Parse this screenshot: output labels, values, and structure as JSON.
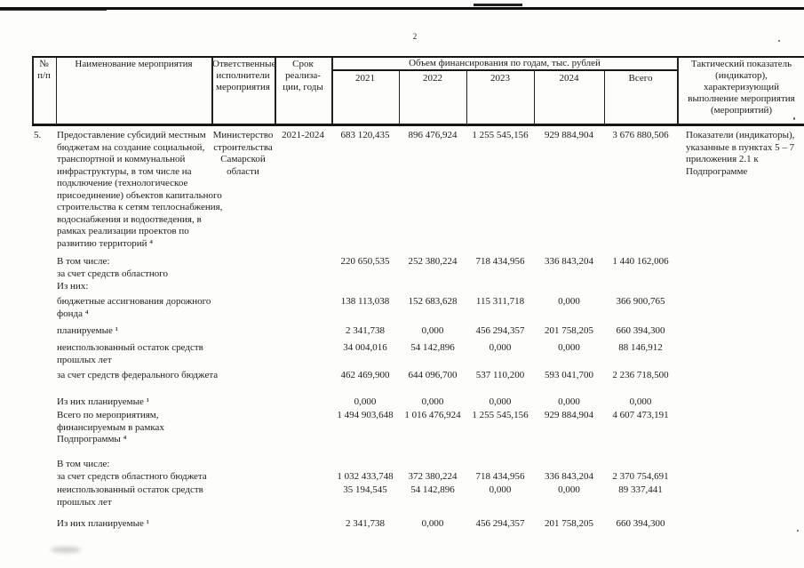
{
  "page": {
    "number": "2"
  },
  "table": {
    "header": {
      "num": "№\nп/п",
      "name": "Наименование мероприятия",
      "resp": "Ответственные\nисполнители\nмероприятия",
      "term": "Срок\nреализа-\nции, годы",
      "finance_span": "Объем финансирования по годам, тыс. рублей",
      "years": [
        "2021",
        "2022",
        "2023",
        "2024",
        "Всего"
      ],
      "indicator": "Тактический показатель\n(индикатор),\nхарактеризующий\nвыполнение мероприятия\n(мероприятий)"
    },
    "rows": [
      {
        "num": "5.",
        "label": "Предоставление субсидий местным\nбюджетам на создание социальной,\nтранспортной и коммунальной\nинфраструктуры, в том числе на\nподключение (технологическое\nприсоединение) объектов капитального\nстроительства к сетям теплоснабжения,\nводоснабжения и водоотведения, в\nрамках реализации проектов по\nразвитию территорий ⁴",
        "resp": "Министерство\nстроительства\nСамарской\nобласти",
        "term": "2021-2024",
        "values": [
          "683 120,435",
          "896 476,924",
          "1 255 545,156",
          "929 884,904",
          "3 676 880,506"
        ],
        "indicator": "Показатели (индикаторы),\nуказанные в пунктах 5 – 7\nприложения 2.1 к\nПодпрограмме"
      },
      {
        "label": "В том числе:\nза счет средств областного",
        "values": [
          "220 650,535",
          "252 380,224",
          "718 434,956",
          "336 843,204",
          "1 440 162,006"
        ]
      },
      {
        "label": "Из них:",
        "values": []
      },
      {
        "label": "бюджетные ассигнования дорожного\nфонда ⁴",
        "values": [
          "138 113,038",
          "152 683,628",
          "115 311,718",
          "0,000",
          "366 900,765"
        ]
      },
      {
        "label": "планируемые ¹",
        "values": [
          "2 341,738",
          "0,000",
          "456 294,357",
          "201 758,205",
          "660 394,300"
        ]
      },
      {
        "label": "неиспользованный остаток средств\nпрошлых лет",
        "values": [
          "34 004,016",
          "54 142,896",
          "0,000",
          "0,000",
          "88 146,912"
        ]
      },
      {
        "label": "за счет средств федерального бюджета",
        "values": [
          "462 469,900",
          "644 096,700",
          "537 110,200",
          "593 041,700",
          "2 236 718,500"
        ]
      },
      {
        "label": "Из них планируемые ¹",
        "values": [
          "0,000",
          "0,000",
          "0,000",
          "0,000",
          "0,000"
        ]
      },
      {
        "label": "Всего по мероприятиям,\nфинансируемым в рамках\nПодпрограммы ⁴",
        "values": [
          "1 494 903,648",
          "1 016 476,924",
          "1 255 545,156",
          "929 884,904",
          "4 607 473,191"
        ]
      },
      {
        "label": "В том числе:\nза счет средств областного бюджета",
        "values": [
          "1 032 433,748",
          "372 380,224",
          "718 434,956",
          "336 843,204",
          "2 370 754,691"
        ]
      },
      {
        "label": "неиспользованный остаток средств\nпрошлых лет",
        "values": [
          "35 194,545",
          "54 142,896",
          "0,000",
          "0,000",
          "89 337,441"
        ]
      },
      {
        "label": "Из них планируемые ¹",
        "values": [
          "2 341,738",
          "0,000",
          "456 294,357",
          "201 758,205",
          "660 394,300"
        ]
      }
    ]
  }
}
